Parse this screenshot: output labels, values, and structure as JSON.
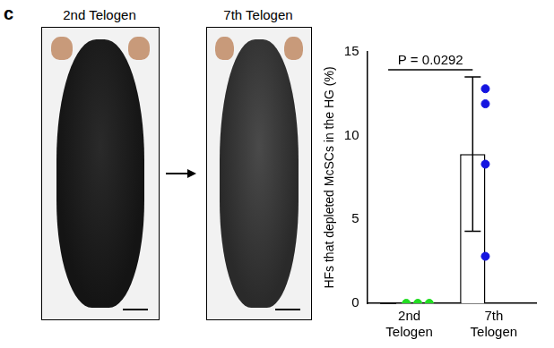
{
  "panel_label": "c",
  "images": [
    {
      "caption": "2nd Telogen"
    },
    {
      "caption": "7th Telogen"
    }
  ],
  "chart_data": {
    "type": "bar",
    "categories": [
      "2nd Telogen",
      "7th Telogen"
    ],
    "values": [
      0,
      8.9
    ],
    "error": [
      0,
      4.6
    ],
    "points": [
      [
        0,
        0,
        0
      ],
      [
        12.8,
        11.9,
        8.3,
        2.8
      ]
    ],
    "point_colors": [
      "#22dd22",
      "#1515e0"
    ],
    "color": "#ffffff",
    "y_label": "HFs that depleted McSCs in the HG (%)",
    "annotation": "P = 0.0292",
    "ylim": [
      0,
      15
    ],
    "yticks": [
      0,
      5,
      10,
      15
    ],
    "grid": false
  }
}
